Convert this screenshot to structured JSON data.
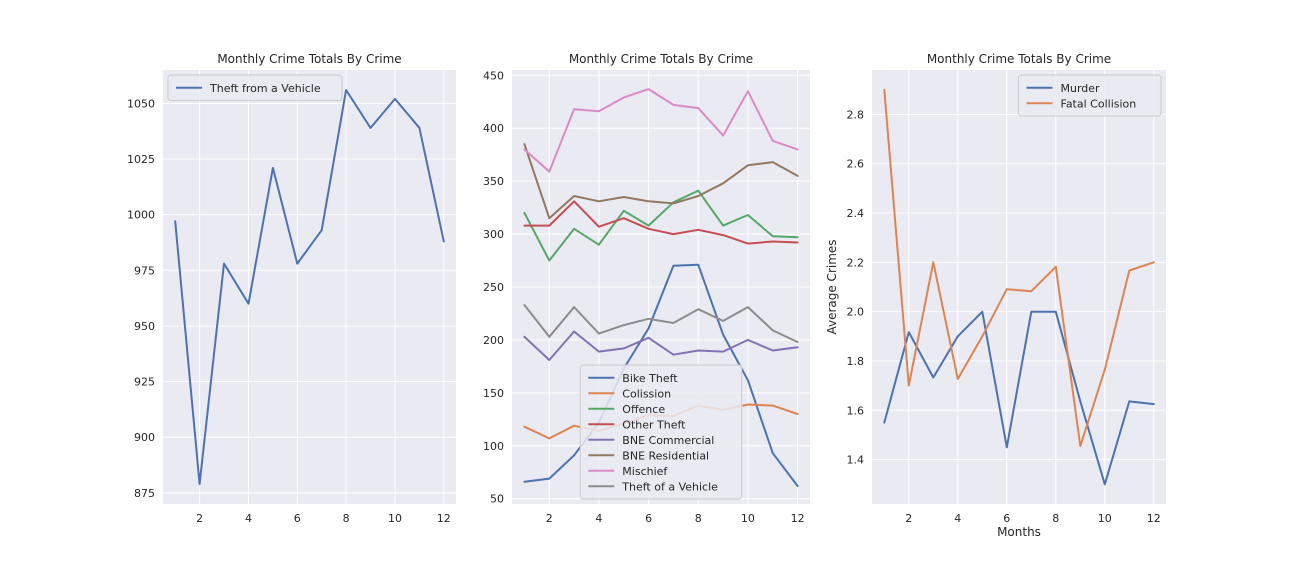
{
  "chart_data": [
    {
      "type": "line",
      "title": "Monthly Crime Totals By Crime",
      "xlabel": "",
      "ylabel": "",
      "xlim": [
        0.5,
        12.5
      ],
      "ylim": [
        870,
        1065
      ],
      "xticks": [
        2,
        4,
        6,
        8,
        10,
        12
      ],
      "yticks": [
        875,
        900,
        925,
        950,
        975,
        1000,
        1025,
        1050
      ],
      "legend_position": "upper-left",
      "x": [
        1,
        2,
        3,
        4,
        5,
        6,
        7,
        8,
        9,
        10,
        11,
        12
      ],
      "series": [
        {
          "name": "Theft from a Vehicle",
          "color": "#4c72b0",
          "values": [
            997,
            879,
            978,
            960,
            1021,
            978,
            993,
            1056,
            1039,
            1052,
            1039,
            988
          ]
        }
      ]
    },
    {
      "type": "line",
      "title": "Monthly Crime Totals By Crime",
      "xlabel": "",
      "ylabel": "",
      "xlim": [
        0.5,
        12.5
      ],
      "ylim": [
        45,
        455
      ],
      "xticks": [
        2,
        4,
        6,
        8,
        10,
        12
      ],
      "yticks": [
        50,
        100,
        150,
        200,
        250,
        300,
        350,
        400,
        450
      ],
      "legend_position": "lower-center",
      "x": [
        1,
        2,
        3,
        4,
        5,
        6,
        7,
        8,
        9,
        10,
        11,
        12
      ],
      "series": [
        {
          "name": "Bike Theft",
          "color": "#4c72b0",
          "values": [
            66,
            69,
            91,
            122,
            173,
            211,
            270,
            271,
            205,
            162,
            93,
            62
          ]
        },
        {
          "name": "Colission",
          "color": "#dd8452",
          "values": [
            118,
            107,
            119,
            114,
            121,
            129,
            128,
            138,
            134,
            139,
            138,
            130
          ]
        },
        {
          "name": "Offence",
          "color": "#55a868",
          "values": [
            320,
            275,
            305,
            290,
            322,
            308,
            330,
            341,
            308,
            318,
            298,
            297
          ]
        },
        {
          "name": "Other Theft",
          "color": "#c44e52",
          "values": [
            308,
            308,
            331,
            307,
            315,
            305,
            300,
            304,
            299,
            291,
            293,
            292
          ]
        },
        {
          "name": "BNE Commercial",
          "color": "#8172b3",
          "values": [
            203,
            181,
            208,
            189,
            192,
            202,
            186,
            190,
            189,
            200,
            190,
            193
          ]
        },
        {
          "name": "BNE Residential",
          "color": "#937860",
          "values": [
            385,
            315,
            336,
            331,
            335,
            331,
            329,
            336,
            348,
            365,
            368,
            355
          ]
        },
        {
          "name": "Mischief",
          "color": "#da8bc3",
          "values": [
            380,
            359,
            418,
            416,
            429,
            437,
            422,
            419,
            393,
            435,
            388,
            380
          ]
        },
        {
          "name": "Theft of a Vehicle",
          "color": "#8c8c8c",
          "values": [
            233,
            203,
            231,
            206,
            214,
            220,
            216,
            229,
            218,
            231,
            209,
            198
          ]
        }
      ]
    },
    {
      "type": "line",
      "title": "Monthly Crime Totals By Crime",
      "xlabel": "Months",
      "ylabel": "Average Crimes",
      "xlim": [
        0.5,
        12.5
      ],
      "ylim": [
        1.22,
        2.98
      ],
      "xticks": [
        2,
        4,
        6,
        8,
        10,
        12
      ],
      "yticks": [
        1.4,
        1.6,
        1.8,
        2.0,
        2.2,
        2.4,
        2.6,
        2.8
      ],
      "legend_position": "upper-right",
      "x": [
        1,
        2,
        3,
        4,
        5,
        6,
        7,
        8,
        9,
        10,
        11,
        12
      ],
      "series": [
        {
          "name": "Murder",
          "color": "#4c72b0",
          "values": [
            1.55,
            1.917,
            1.733,
            1.9,
            2.0,
            1.45,
            2.0,
            2.0,
            1.636,
            1.3,
            1.636,
            1.625
          ]
        },
        {
          "name": "Fatal Collision",
          "color": "#dd8452",
          "values": [
            2.9,
            1.7,
            2.2,
            1.727,
            1.9,
            2.091,
            2.083,
            2.182,
            1.455,
            1.765,
            2.167,
            2.2
          ]
        }
      ]
    }
  ]
}
